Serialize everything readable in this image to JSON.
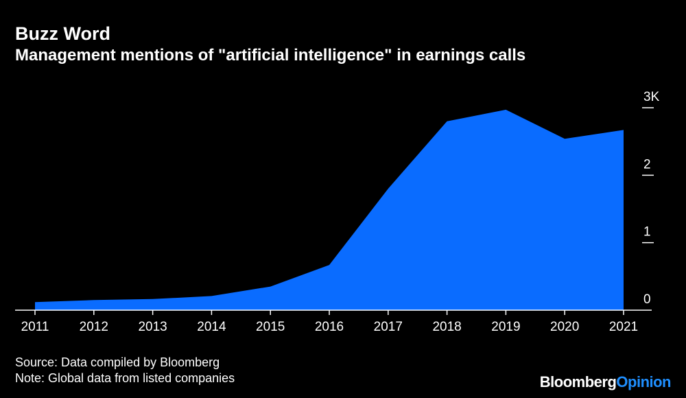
{
  "header": {
    "title": "Buzz Word",
    "subtitle": "Management mentions of \"artificial intelligence\" in earnings calls"
  },
  "footer": {
    "source": "Source: Data compiled by Bloomberg",
    "note": "Note: Global data from listed companies",
    "logo_brand": "Bloomberg",
    "logo_sub": "Opinion"
  },
  "colors": {
    "background": "#000000",
    "area": "#0a6cff",
    "text": "#ffffff",
    "logo_accent": "#1f8fff"
  },
  "chart_data": {
    "type": "area",
    "title": "Buzz Word",
    "subtitle": "Management mentions of \"artificial intelligence\" in earnings calls",
    "categories": [
      "2011",
      "2012",
      "2013",
      "2014",
      "2015",
      "2016",
      "2017",
      "2018",
      "2019",
      "2020",
      "2021"
    ],
    "series": [
      {
        "values": [
          120,
          150,
          165,
          210,
          350,
          670,
          1800,
          2800,
          2970,
          2540,
          2670
        ]
      }
    ],
    "y_ticks": [
      "0",
      "1",
      "2",
      "3K"
    ],
    "y_tick_values": [
      0,
      1000,
      2000,
      3000
    ],
    "ylim": [
      0,
      3000
    ],
    "y_axis_side": "right",
    "grid": false,
    "legend": "none"
  }
}
